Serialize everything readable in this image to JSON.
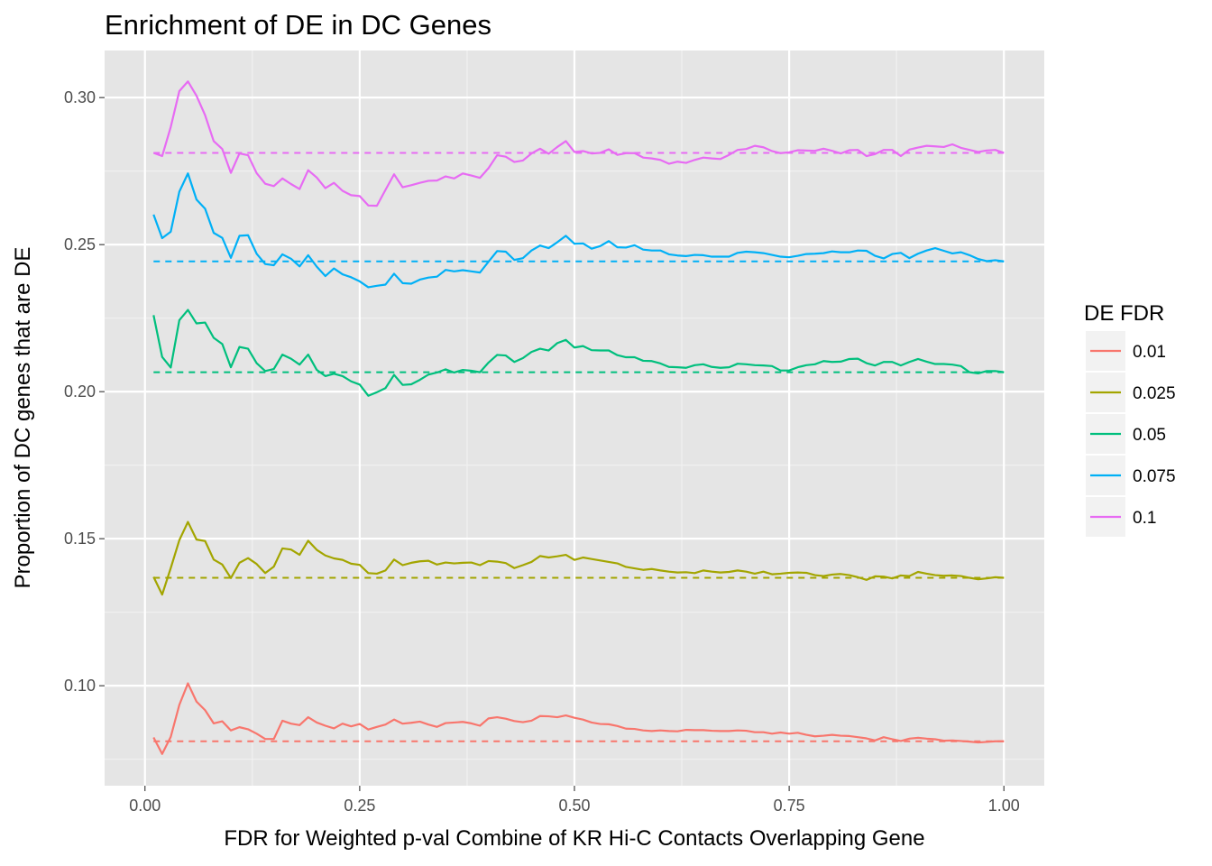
{
  "chart_data": {
    "type": "line",
    "title": "Enrichment of DE in DC Genes",
    "xlabel": "FDR for Weighted p-val Combine of KR Hi-C Contacts Overlapping Gene",
    "ylabel": "Proportion of DC genes that are DE",
    "xlim": [
      -0.047,
      1.047
    ],
    "ylim": [
      0.066,
      0.316
    ],
    "x_ticks": [
      0.0,
      0.25,
      0.5,
      0.75,
      1.0
    ],
    "x_tick_labels": [
      "0.00",
      "0.25",
      "0.50",
      "0.75",
      "1.00"
    ],
    "y_ticks": [
      0.1,
      0.15,
      0.2,
      0.25,
      0.3
    ],
    "y_tick_labels": [
      "0.10",
      "0.15",
      "0.20",
      "0.25",
      "0.30"
    ],
    "grid": true,
    "legend": {
      "title": "DE FDR",
      "position": "right"
    },
    "background": "#e5e5e5",
    "x": [
      0.01,
      0.02,
      0.03,
      0.04,
      0.05,
      0.06,
      0.07,
      0.08,
      0.09,
      0.1,
      0.11,
      0.12,
      0.13,
      0.14,
      0.15,
      0.16,
      0.17,
      0.18,
      0.19,
      0.2,
      0.21,
      0.22,
      0.23,
      0.24,
      0.25,
      0.26,
      0.27,
      0.28,
      0.29,
      0.3,
      0.31,
      0.32,
      0.33,
      0.34,
      0.35,
      0.36,
      0.37,
      0.38,
      0.39,
      0.4,
      0.41,
      0.42,
      0.43,
      0.44,
      0.45,
      0.46,
      0.47,
      0.48,
      0.49,
      0.5,
      0.51,
      0.52,
      0.53,
      0.54,
      0.55,
      0.56,
      0.57,
      0.58,
      0.59,
      0.6,
      0.61,
      0.62,
      0.63,
      0.64,
      0.65,
      0.66,
      0.67,
      0.68,
      0.69,
      0.7,
      0.71,
      0.72,
      0.73,
      0.74,
      0.75,
      0.76,
      0.77,
      0.78,
      0.79,
      0.8,
      0.81,
      0.82,
      0.83,
      0.84,
      0.85,
      0.86,
      0.87,
      0.88,
      0.89,
      0.9,
      0.91,
      0.92,
      0.93,
      0.94,
      0.95,
      0.96,
      0.97,
      0.98,
      0.99,
      1.0
    ],
    "series": [
      {
        "name": "0.01",
        "color": "#F8766D",
        "baseline": 0.0811,
        "values": [
          0.0824,
          0.0768,
          0.0826,
          0.0935,
          0.1008,
          0.0946,
          0.0917,
          0.0872,
          0.0879,
          0.0848,
          0.0859,
          0.0852,
          0.0837,
          0.0819,
          0.0819,
          0.0881,
          0.0871,
          0.0866,
          0.0893,
          0.0875,
          0.0864,
          0.0855,
          0.0871,
          0.0862,
          0.087,
          0.0851,
          0.086,
          0.0868,
          0.0885,
          0.0871,
          0.0874,
          0.0878,
          0.0868,
          0.086,
          0.0873,
          0.0875,
          0.0877,
          0.0872,
          0.0864,
          0.0889,
          0.0893,
          0.0888,
          0.088,
          0.0876,
          0.0881,
          0.0897,
          0.0896,
          0.0893,
          0.0899,
          0.0891,
          0.0885,
          0.0875,
          0.087,
          0.0869,
          0.0863,
          0.0854,
          0.0853,
          0.0848,
          0.0846,
          0.0848,
          0.0846,
          0.0845,
          0.085,
          0.0849,
          0.0849,
          0.0847,
          0.0846,
          0.0846,
          0.0848,
          0.0847,
          0.0842,
          0.0842,
          0.0837,
          0.0841,
          0.0837,
          0.084,
          0.0833,
          0.0828,
          0.083,
          0.0833,
          0.083,
          0.0829,
          0.0825,
          0.0821,
          0.0814,
          0.0825,
          0.0818,
          0.0812,
          0.082,
          0.0823,
          0.082,
          0.0818,
          0.0813,
          0.0814,
          0.0812,
          0.081,
          0.0807,
          0.0809,
          0.0811,
          0.0811
        ]
      },
      {
        "name": "0.025",
        "color": "#A3A500",
        "baseline": 0.1367,
        "values": [
          0.137,
          0.131,
          0.14,
          0.1495,
          0.1557,
          0.1497,
          0.1492,
          0.1429,
          0.1412,
          0.1366,
          0.1418,
          0.1434,
          0.1414,
          0.1383,
          0.1405,
          0.1467,
          0.1463,
          0.1445,
          0.1493,
          0.1462,
          0.1443,
          0.1433,
          0.1428,
          0.1415,
          0.1411,
          0.1383,
          0.1381,
          0.1392,
          0.1429,
          0.141,
          0.1418,
          0.1423,
          0.1425,
          0.1412,
          0.1419,
          0.1416,
          0.1418,
          0.1419,
          0.141,
          0.1424,
          0.1422,
          0.1417,
          0.14,
          0.141,
          0.1421,
          0.1441,
          0.1436,
          0.144,
          0.1445,
          0.1428,
          0.1436,
          0.1431,
          0.1426,
          0.1421,
          0.1416,
          0.1404,
          0.1399,
          0.1394,
          0.1397,
          0.1392,
          0.1388,
          0.1385,
          0.1386,
          0.1383,
          0.1392,
          0.1388,
          0.1385,
          0.1387,
          0.1392,
          0.1388,
          0.1381,
          0.1388,
          0.1379,
          0.1381,
          0.1384,
          0.1385,
          0.1384,
          0.1376,
          0.1373,
          0.1378,
          0.138,
          0.1376,
          0.1369,
          0.136,
          0.1372,
          0.1371,
          0.1365,
          0.1375,
          0.1373,
          0.1387,
          0.1381,
          0.1376,
          0.1374,
          0.1375,
          0.1373,
          0.1367,
          0.1362,
          0.1365,
          0.1369,
          0.1367
        ]
      },
      {
        "name": "0.05",
        "color": "#00BF7D",
        "baseline": 0.2066,
        "values": [
          0.226,
          0.2118,
          0.2082,
          0.2243,
          0.2278,
          0.2232,
          0.2235,
          0.2183,
          0.2162,
          0.2083,
          0.2152,
          0.2146,
          0.2097,
          0.207,
          0.2077,
          0.2126,
          0.2112,
          0.2092,
          0.2126,
          0.2074,
          0.2053,
          0.2061,
          0.2053,
          0.2035,
          0.2024,
          0.1986,
          0.1998,
          0.2012,
          0.2057,
          0.2023,
          0.2025,
          0.204,
          0.2058,
          0.2065,
          0.2076,
          0.2065,
          0.2074,
          0.2071,
          0.2066,
          0.2099,
          0.2125,
          0.2123,
          0.2101,
          0.2114,
          0.2135,
          0.2146,
          0.214,
          0.2165,
          0.2176,
          0.215,
          0.2155,
          0.2141,
          0.214,
          0.214,
          0.2124,
          0.2117,
          0.2117,
          0.2105,
          0.2104,
          0.2096,
          0.2084,
          0.2083,
          0.2081,
          0.209,
          0.2093,
          0.2084,
          0.2081,
          0.2083,
          0.2095,
          0.2093,
          0.209,
          0.2089,
          0.2087,
          0.2072,
          0.2072,
          0.2083,
          0.209,
          0.2093,
          0.2104,
          0.2101,
          0.2102,
          0.2111,
          0.2112,
          0.2097,
          0.2089,
          0.2101,
          0.2101,
          0.2089,
          0.2101,
          0.2111,
          0.2102,
          0.2094,
          0.2094,
          0.2092,
          0.2087,
          0.2066,
          0.2062,
          0.207,
          0.207,
          0.2066
        ]
      },
      {
        "name": "0.075",
        "color": "#00B0F6",
        "baseline": 0.2443,
        "values": [
          0.2602,
          0.2522,
          0.2544,
          0.268,
          0.2742,
          0.2653,
          0.2622,
          0.254,
          0.2523,
          0.2455,
          0.253,
          0.2532,
          0.2469,
          0.2434,
          0.243,
          0.2467,
          0.2452,
          0.2426,
          0.2464,
          0.2425,
          0.2393,
          0.2419,
          0.2399,
          0.2389,
          0.2375,
          0.2355,
          0.236,
          0.2364,
          0.2401,
          0.2369,
          0.2367,
          0.2381,
          0.2388,
          0.2391,
          0.2414,
          0.2409,
          0.2413,
          0.2409,
          0.2405,
          0.2442,
          0.2478,
          0.2476,
          0.2448,
          0.2454,
          0.248,
          0.2497,
          0.2488,
          0.2508,
          0.253,
          0.2503,
          0.2504,
          0.2486,
          0.2495,
          0.2512,
          0.2491,
          0.249,
          0.2498,
          0.2483,
          0.248,
          0.248,
          0.2467,
          0.2463,
          0.2461,
          0.2465,
          0.2464,
          0.2459,
          0.2459,
          0.2459,
          0.2472,
          0.2476,
          0.2474,
          0.2471,
          0.2465,
          0.2459,
          0.2457,
          0.2462,
          0.2468,
          0.2469,
          0.2471,
          0.2477,
          0.2474,
          0.2474,
          0.248,
          0.2479,
          0.2462,
          0.2453,
          0.2468,
          0.2472,
          0.2454,
          0.2469,
          0.248,
          0.2488,
          0.2479,
          0.247,
          0.2474,
          0.2464,
          0.2451,
          0.2444,
          0.2447,
          0.2443
        ]
      },
      {
        "name": "0.1",
        "color": "#E76BF3",
        "baseline": 0.2812,
        "values": [
          0.2812,
          0.2801,
          0.29,
          0.3022,
          0.3055,
          0.3006,
          0.294,
          0.2852,
          0.2825,
          0.2744,
          0.281,
          0.2804,
          0.2743,
          0.2707,
          0.2699,
          0.2725,
          0.2706,
          0.2689,
          0.2753,
          0.2728,
          0.2692,
          0.271,
          0.2683,
          0.2668,
          0.2665,
          0.2633,
          0.2632,
          0.2686,
          0.2739,
          0.2695,
          0.2702,
          0.271,
          0.2717,
          0.2718,
          0.2732,
          0.2725,
          0.2742,
          0.2735,
          0.2727,
          0.276,
          0.2804,
          0.2799,
          0.2781,
          0.2786,
          0.281,
          0.2826,
          0.2809,
          0.2832,
          0.2852,
          0.2815,
          0.2818,
          0.281,
          0.2812,
          0.2824,
          0.2805,
          0.2811,
          0.2811,
          0.2796,
          0.2793,
          0.2788,
          0.2775,
          0.2782,
          0.2778,
          0.2788,
          0.2796,
          0.2793,
          0.2791,
          0.2805,
          0.2822,
          0.2825,
          0.2836,
          0.2831,
          0.2818,
          0.2811,
          0.2814,
          0.2821,
          0.282,
          0.2819,
          0.2826,
          0.2819,
          0.281,
          0.2821,
          0.2822,
          0.2801,
          0.2808,
          0.2822,
          0.2822,
          0.2801,
          0.2823,
          0.283,
          0.2836,
          0.2834,
          0.2832,
          0.2841,
          0.2829,
          0.2822,
          0.2815,
          0.282,
          0.2822,
          0.2812
        ]
      }
    ]
  }
}
